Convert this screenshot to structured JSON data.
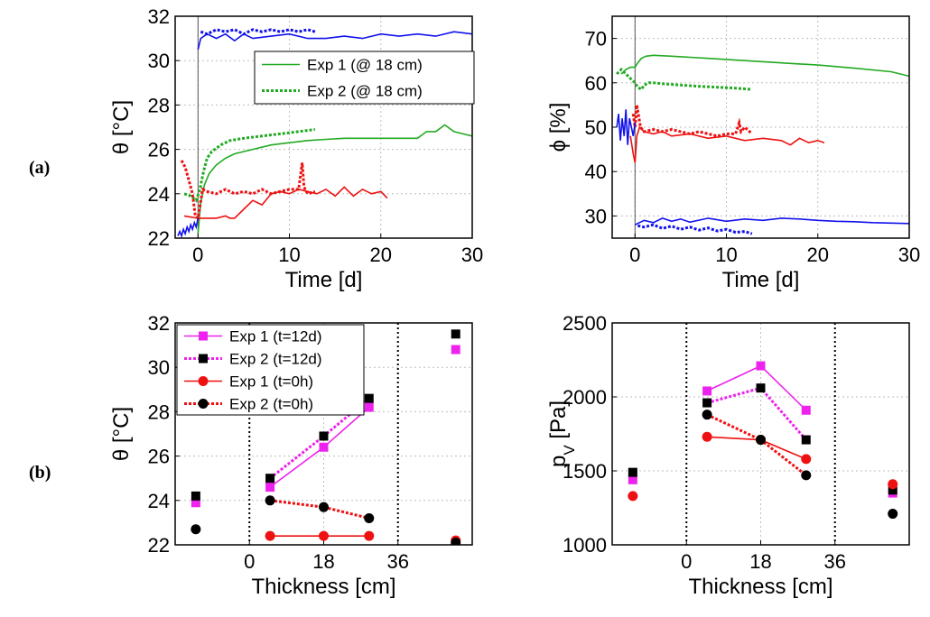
{
  "row_labels": {
    "a": "(a)",
    "b": "(b)"
  },
  "chart_data": [
    {
      "id": "temp_time",
      "type": "line",
      "xlabel": "Time [d]",
      "ylabel": "θ [°C]",
      "xlim": [
        -2.5,
        30
      ],
      "ylim": [
        22,
        32
      ],
      "xticks": [
        0,
        10,
        20,
        30
      ],
      "yticks": [
        22,
        24,
        26,
        28,
        30,
        32
      ],
      "xtick_labels": [
        "0",
        "10",
        "20",
        "30"
      ],
      "ytick_labels": [
        "22",
        "24",
        "26",
        "28",
        "30",
        "32"
      ],
      "grid": true,
      "legend_position": "top-right",
      "vline_x": 0,
      "series": [
        {
          "name": "Exp 1 (@ 18 cm)",
          "color": "#22aa22",
          "dash": "solid",
          "legend": true,
          "x": [
            0,
            0.3,
            0.7,
            1.2,
            2,
            3,
            4,
            6,
            8,
            10,
            12,
            14,
            16,
            18,
            20,
            22,
            24,
            25,
            26,
            27,
            28,
            29,
            30
          ],
          "y": [
            22.2,
            23.6,
            24.4,
            24.9,
            25.3,
            25.6,
            25.8,
            26.0,
            26.2,
            26.3,
            26.4,
            26.45,
            26.5,
            26.5,
            26.5,
            26.5,
            26.5,
            26.8,
            26.8,
            27.1,
            26.8,
            26.7,
            26.6
          ]
        },
        {
          "name": "Exp 2 (@ 18 cm)",
          "color": "#22aa22",
          "dash": "dotted",
          "legend": true,
          "x": [
            -1.5,
            -0.8,
            -0.2,
            0.2,
            0.6,
            1.0,
            1.5,
            2.5,
            3.5,
            5,
            7,
            9,
            11,
            12.8
          ],
          "y": [
            24.0,
            23.9,
            23.7,
            24.2,
            25.0,
            25.6,
            25.9,
            26.2,
            26.4,
            26.5,
            26.6,
            26.7,
            26.8,
            26.9
          ]
        },
        {
          "name": "Exp 1 red",
          "color": "#ee1111",
          "dash": "solid",
          "legend": false,
          "x": [
            -1.5,
            0,
            1,
            2,
            3,
            3.5,
            4,
            5,
            6,
            7,
            8,
            9,
            10,
            11,
            12,
            13,
            14,
            15,
            16,
            17,
            18,
            19,
            20,
            20.7
          ],
          "y": [
            23.0,
            22.9,
            22.9,
            22.9,
            23.0,
            22.9,
            22.9,
            23.3,
            23.7,
            23.5,
            24.0,
            24.1,
            24.0,
            24.2,
            24.1,
            24.0,
            24.2,
            23.9,
            24.3,
            23.9,
            24.2,
            24.0,
            24.1,
            23.8
          ]
        },
        {
          "name": "Exp 2 red",
          "color": "#ee1111",
          "dash": "dotted",
          "legend": false,
          "x": [
            -1.8,
            -1.4,
            -1.0,
            -0.6,
            -0.3,
            0,
            0.5,
            1,
            2,
            3,
            4,
            5,
            6,
            7,
            8,
            9,
            10,
            11,
            11.4,
            11.6,
            12,
            12.8
          ],
          "y": [
            25.5,
            25.2,
            24.6,
            24.0,
            23.0,
            22.9,
            24.2,
            24.1,
            24.0,
            24.2,
            24.0,
            24.1,
            24.0,
            24.2,
            24.0,
            24.1,
            24.2,
            24.2,
            25.4,
            24.3,
            24.0,
            24.1
          ]
        },
        {
          "name": "Exp 1 blue",
          "color": "#1111ee",
          "dash": "solid",
          "legend": false,
          "x": [
            0,
            0.3,
            1,
            2,
            3,
            4,
            5,
            6,
            8,
            10,
            12,
            14,
            16,
            18,
            20,
            22,
            24,
            26,
            28,
            30
          ],
          "y": [
            30.5,
            31.0,
            31.2,
            31.0,
            31.2,
            30.9,
            31.2,
            31.0,
            31.1,
            31.2,
            31.0,
            31.0,
            31.1,
            31.0,
            31.2,
            31.1,
            31.2,
            31.1,
            31.3,
            31.2
          ]
        },
        {
          "name": "Exp 2 blue",
          "color": "#1111ee",
          "dash": "dotted",
          "legend": false,
          "x": [
            0.3,
            1,
            2,
            3,
            4,
            5,
            6,
            7,
            8,
            9,
            10,
            11,
            12,
            12.8
          ],
          "y": [
            31.3,
            31.2,
            31.4,
            31.3,
            31.4,
            31.2,
            31.4,
            31.3,
            31.4,
            31.3,
            31.4,
            31.3,
            31.4,
            31.3
          ]
        },
        {
          "name": "pre blue",
          "color": "#1111ee",
          "dash": "solid",
          "legend": false,
          "x": [
            -2.2,
            -2.0,
            -1.8,
            -1.6,
            -1.4,
            -1.2,
            -1.0,
            -0.8,
            -0.6,
            -0.4,
            -0.2,
            0
          ],
          "y": [
            22.1,
            22.3,
            22.1,
            22.4,
            22.2,
            22.5,
            22.3,
            22.6,
            22.4,
            22.7,
            22.5,
            22.9
          ]
        }
      ]
    },
    {
      "id": "rh_time",
      "type": "line",
      "xlabel": "Time [d]",
      "ylabel": "ϕ [%]",
      "xlim": [
        -2.5,
        30
      ],
      "ylim": [
        25,
        75
      ],
      "xticks": [
        0,
        10,
        20,
        30
      ],
      "yticks": [
        30,
        40,
        50,
        60,
        70
      ],
      "xtick_labels": [
        "0",
        "10",
        "20",
        "30"
      ],
      "ytick_labels": [
        "30",
        "40",
        "50",
        "60",
        "70"
      ],
      "grid": true,
      "vline_x": 0,
      "series": [
        {
          "name": "Exp 1 green",
          "color": "#22aa22",
          "dash": "solid",
          "x": [
            -1.5,
            -1.0,
            -0.5,
            0,
            0.3,
            0.7,
            1.2,
            2,
            4,
            8,
            12,
            16,
            20,
            24,
            28,
            30
          ],
          "y": [
            62,
            63,
            63.5,
            63.5,
            64.5,
            65.5,
            66,
            66.2,
            66,
            65.5,
            65,
            64.5,
            64,
            63.3,
            62.5,
            61.5
          ]
        },
        {
          "name": "Exp 2 green",
          "color": "#22aa22",
          "dash": "dotted",
          "x": [
            -2,
            -1.5,
            -1,
            -0.5,
            0,
            0.3,
            0.7,
            1,
            1.5,
            2,
            3,
            5,
            7,
            9,
            11,
            12.8
          ],
          "y": [
            62,
            63,
            62,
            61,
            60,
            59,
            58.5,
            59.5,
            60,
            60,
            59.8,
            59.5,
            59.2,
            59,
            58.8,
            58.5
          ]
        },
        {
          "name": "Exp 1 red",
          "color": "#ee1111",
          "dash": "solid",
          "x": [
            -0.5,
            -0.2,
            0,
            0.2,
            0.5,
            1,
            2,
            3,
            4,
            6,
            8,
            10,
            12,
            14,
            16,
            17,
            18,
            19,
            20,
            20.7
          ],
          "y": [
            48,
            44,
            42,
            48,
            50,
            49,
            48.5,
            49,
            48,
            48.5,
            47.5,
            48,
            47,
            47.5,
            47,
            46,
            47.5,
            46.5,
            47,
            46.5
          ]
        },
        {
          "name": "Exp 2 red",
          "color": "#ee1111",
          "dash": "dotted",
          "x": [
            -0.2,
            0,
            0.2,
            0.6,
            1,
            2,
            3,
            4,
            5,
            6,
            7,
            8,
            9,
            10,
            11,
            11.4,
            11.6,
            12,
            12.8
          ],
          "y": [
            53,
            50,
            55,
            50,
            49,
            49.5,
            49,
            49.5,
            49,
            48.5,
            49,
            48.5,
            48,
            48.5,
            48.5,
            51,
            49,
            50,
            48.5
          ]
        },
        {
          "name": "Exp 1 blue",
          "color": "#1111ee",
          "dash": "solid",
          "x": [
            0,
            1,
            2,
            3,
            4,
            5,
            6,
            8,
            10,
            12,
            14,
            16,
            18,
            20,
            22,
            24,
            26,
            28,
            30
          ],
          "y": [
            28,
            29,
            28.5,
            29.5,
            28.8,
            29.3,
            28.6,
            29.5,
            28.8,
            29.3,
            29,
            29.5,
            29.3,
            29,
            28.8,
            28.7,
            28.5,
            28.4,
            28.3
          ]
        },
        {
          "name": "Exp 2 blue",
          "color": "#1111ee",
          "dash": "dotted",
          "x": [
            0.3,
            1,
            2,
            3,
            4,
            5,
            6,
            7,
            8,
            9,
            10,
            11,
            12,
            12.8
          ],
          "y": [
            27.8,
            27.5,
            28,
            27.2,
            27.7,
            27,
            27.5,
            26.8,
            27.3,
            26.6,
            27,
            26.3,
            26.5,
            26
          ]
        },
        {
          "name": "pre blue",
          "color": "#1111ee",
          "dash": "solid",
          "x": [
            -2,
            -1.8,
            -1.6,
            -1.4,
            -1.2,
            -1.0,
            -0.8,
            -0.6,
            -0.4,
            -0.2,
            0
          ],
          "y": [
            50,
            53,
            47,
            52,
            48,
            54,
            46,
            52,
            50,
            48,
            51
          ]
        }
      ]
    },
    {
      "id": "temp_thickness",
      "type": "line",
      "xlabel": "Thickness [cm]",
      "ylabel": "θ [°C]",
      "xlim": [
        -18,
        54
      ],
      "ylim": [
        22,
        32
      ],
      "xticks": [
        0,
        18,
        36
      ],
      "yticks": [
        22,
        24,
        26,
        28,
        30,
        32
      ],
      "xtick_labels": [
        "0",
        "18",
        "36"
      ],
      "ytick_labels": [
        "22",
        "24",
        "26",
        "28",
        "30",
        "32"
      ],
      "grid": true,
      "legend_position": "top-left",
      "wall_lines_x": [
        0,
        36
      ],
      "series": [
        {
          "name": "Exp 1 (t=12d)",
          "color": "#ee22ee",
          "dash": "solid",
          "marker": "square",
          "marker_color": "#ee22ee",
          "x": [
            5,
            18,
            29
          ],
          "y": [
            24.6,
            26.4,
            28.2
          ],
          "outside_x": [
            -13,
            50
          ],
          "outside_y": [
            23.9,
            30.8
          ]
        },
        {
          "name": "Exp 2 (t=12d)",
          "color": "#ee22ee",
          "dash": "dotted",
          "marker": "square",
          "marker_color": "#000000",
          "x": [
            5,
            18,
            29
          ],
          "y": [
            25.0,
            26.9,
            28.6
          ],
          "outside_x": [
            -13,
            50
          ],
          "outside_y": [
            24.2,
            31.5
          ]
        },
        {
          "name": "Exp 1 (t=0h)",
          "color": "#ee1111",
          "dash": "solid",
          "marker": "circle",
          "marker_color": "#ee1111",
          "x": [
            5,
            18,
            29
          ],
          "y": [
            22.4,
            22.4,
            22.4
          ],
          "outside_x": [
            50
          ],
          "outside_y": [
            22.2
          ]
        },
        {
          "name": "Exp 2 (t=0h)",
          "color": "#ee1111",
          "dash": "dotted",
          "marker": "circle",
          "marker_color": "#000000",
          "x": [
            5,
            18,
            29
          ],
          "y": [
            24.0,
            23.7,
            23.2
          ],
          "outside_x": [
            -13,
            50
          ],
          "outside_y": [
            22.7,
            22.1
          ]
        }
      ]
    },
    {
      "id": "pv_thickness",
      "type": "line",
      "xlabel": "Thickness [cm]",
      "ylabel": "p",
      "ylabel_sub": "V",
      "ylabel_unit": " [Pa]",
      "xlim": [
        -18,
        54
      ],
      "ylim": [
        1000,
        2500
      ],
      "xticks": [
        0,
        18,
        36
      ],
      "yticks": [
        1000,
        1500,
        2000,
        2500
      ],
      "xtick_labels": [
        "0",
        "18",
        "36"
      ],
      "ytick_labels": [
        "1000",
        "1500",
        "2000",
        "2500"
      ],
      "grid": true,
      "wall_lines_x": [
        0,
        36
      ],
      "series": [
        {
          "name": "Exp 1 (t=12d)",
          "color": "#ee22ee",
          "dash": "solid",
          "marker": "square",
          "marker_color": "#ee22ee",
          "x": [
            5,
            18,
            29
          ],
          "y": [
            2040,
            2210,
            1910
          ],
          "outside_x": [
            -13,
            50
          ],
          "outside_y": [
            1440,
            1350
          ]
        },
        {
          "name": "Exp 2 (t=12d)",
          "color": "#ee22ee",
          "dash": "dotted",
          "marker": "square",
          "marker_color": "#000000",
          "x": [
            5,
            18,
            29
          ],
          "y": [
            1960,
            2060,
            1710
          ],
          "outside_x": [
            -13,
            50
          ],
          "outside_y": [
            1490,
            1370
          ]
        },
        {
          "name": "Exp 1 (t=0h)",
          "color": "#ee1111",
          "dash": "solid",
          "marker": "circle",
          "marker_color": "#ee1111",
          "x": [
            5,
            18,
            29
          ],
          "y": [
            1730,
            1710,
            1580
          ],
          "outside_x": [
            -13,
            50
          ],
          "outside_y": [
            1330,
            1410
          ]
        },
        {
          "name": "Exp 2 (t=0h)",
          "color": "#ee1111",
          "dash": "dotted",
          "marker": "circle",
          "marker_color": "#000000",
          "x": [
            5,
            18,
            29
          ],
          "y": [
            1880,
            1710,
            1470
          ],
          "outside_x": [
            50
          ],
          "outside_y": [
            1210
          ]
        }
      ]
    }
  ]
}
